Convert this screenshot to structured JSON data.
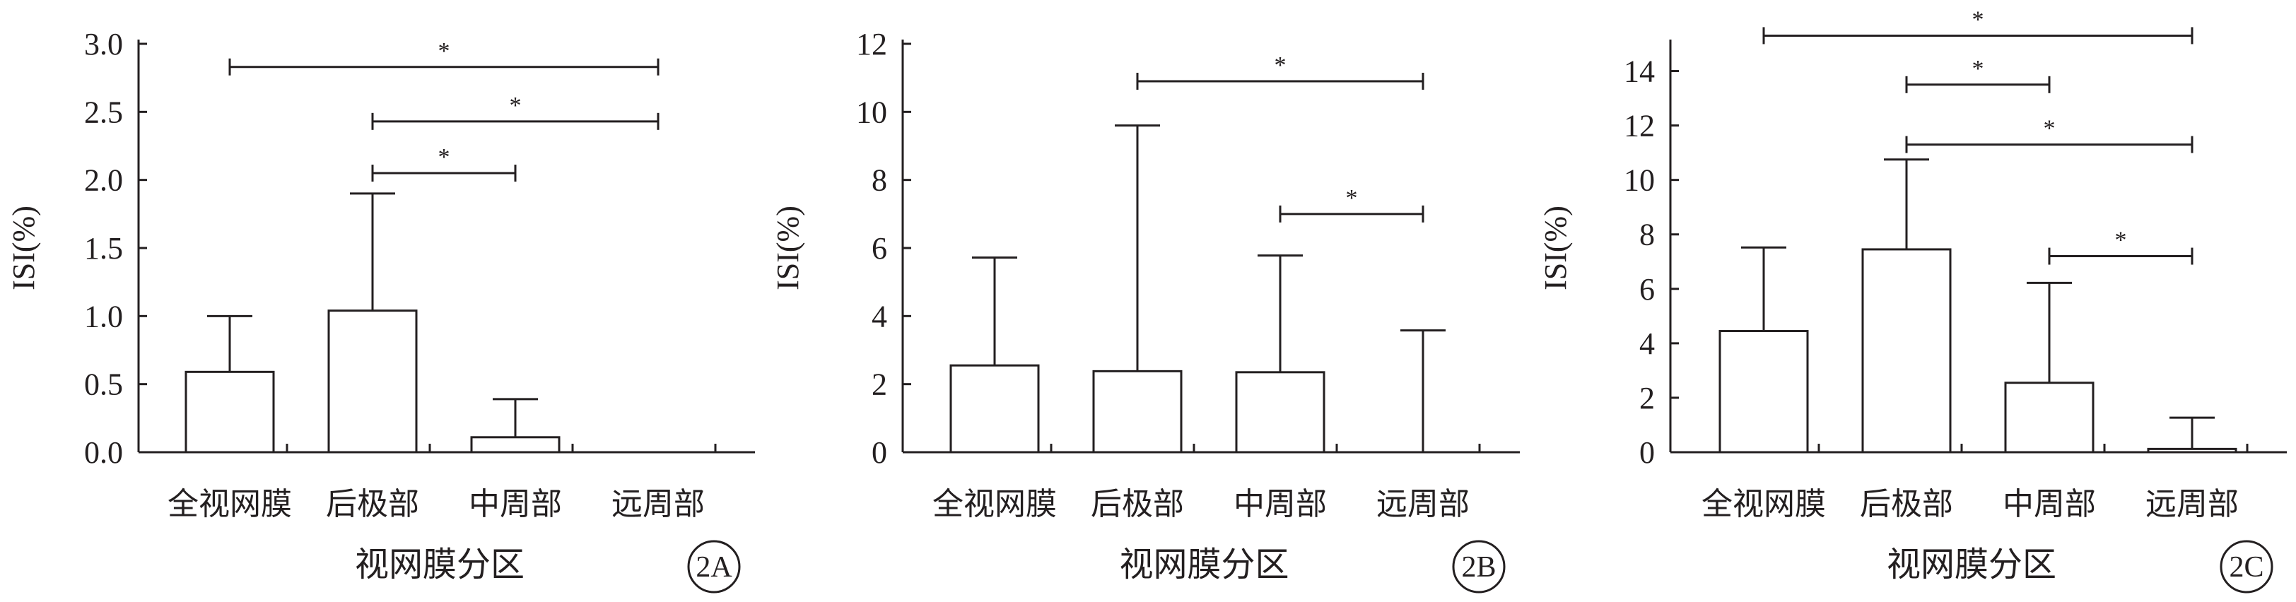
{
  "chart_data": [
    {
      "type": "bar",
      "panel": "2A",
      "categories": [
        "全视网膜",
        "后极部",
        "中周部",
        "远周部"
      ],
      "values": [
        0.59,
        1.04,
        0.11,
        0
      ],
      "error_upper": [
        1.0,
        1.9,
        0.39,
        null
      ],
      "xlabel": "视网膜分区",
      "ylabel": "ISI(%)",
      "ylim": [
        0,
        3.0
      ],
      "yticks": [
        0.0,
        0.5,
        1.0,
        1.5,
        2.0,
        2.5,
        3.0
      ],
      "ytick_labels": [
        "0.0",
        "0.5",
        "1.0",
        "1.5",
        "2.0",
        "2.5",
        "3.0"
      ],
      "significance": [
        {
          "from": 0,
          "to": 3,
          "y": 2.83,
          "label": "*"
        },
        {
          "from": 1,
          "to": 3,
          "y": 2.43,
          "label": "*"
        },
        {
          "from": 1,
          "to": 2,
          "y": 2.05,
          "label": "*"
        }
      ]
    },
    {
      "type": "bar",
      "panel": "2B",
      "categories": [
        "全视网膜",
        "后极部",
        "中周部",
        "远周部"
      ],
      "values": [
        2.55,
        2.38,
        2.35,
        0
      ],
      "error_upper": [
        5.72,
        9.6,
        5.78,
        3.58
      ],
      "xlabel": "视网膜分区",
      "ylabel": "ISI(%)",
      "ylim": [
        0,
        12
      ],
      "yticks": [
        0,
        2,
        4,
        6,
        8,
        10,
        12
      ],
      "ytick_labels": [
        "0",
        "2",
        "4",
        "6",
        "8",
        "10",
        "12"
      ],
      "significance": [
        {
          "from": 1,
          "to": 3,
          "y": 10.9,
          "label": "*"
        },
        {
          "from": 2,
          "to": 3,
          "y": 7.0,
          "label": "*"
        }
      ]
    },
    {
      "type": "bar",
      "panel": "2C",
      "categories": [
        "全视网膜",
        "后极部",
        "中周部",
        "远周部"
      ],
      "values": [
        4.45,
        7.45,
        2.55,
        0.12
      ],
      "error_upper": [
        7.52,
        10.75,
        6.22,
        1.27
      ],
      "xlabel": "视网膜分区",
      "ylabel": "ISI(%)",
      "ylim": [
        0,
        15
      ],
      "yticks": [
        0,
        2,
        4,
        6,
        8,
        10,
        12,
        14
      ],
      "ytick_labels": [
        "0",
        "2",
        "4",
        "6",
        "8",
        "10",
        "12",
        "14"
      ],
      "significance": [
        {
          "from": 0,
          "to": 3,
          "y": 15.3,
          "label": "*"
        },
        {
          "from": 1,
          "to": 2,
          "y": 13.5,
          "label": "*"
        },
        {
          "from": 1,
          "to": 3,
          "y": 11.3,
          "label": "*"
        },
        {
          "from": 2,
          "to": 3,
          "y": 7.2,
          "label": "*"
        }
      ]
    }
  ]
}
